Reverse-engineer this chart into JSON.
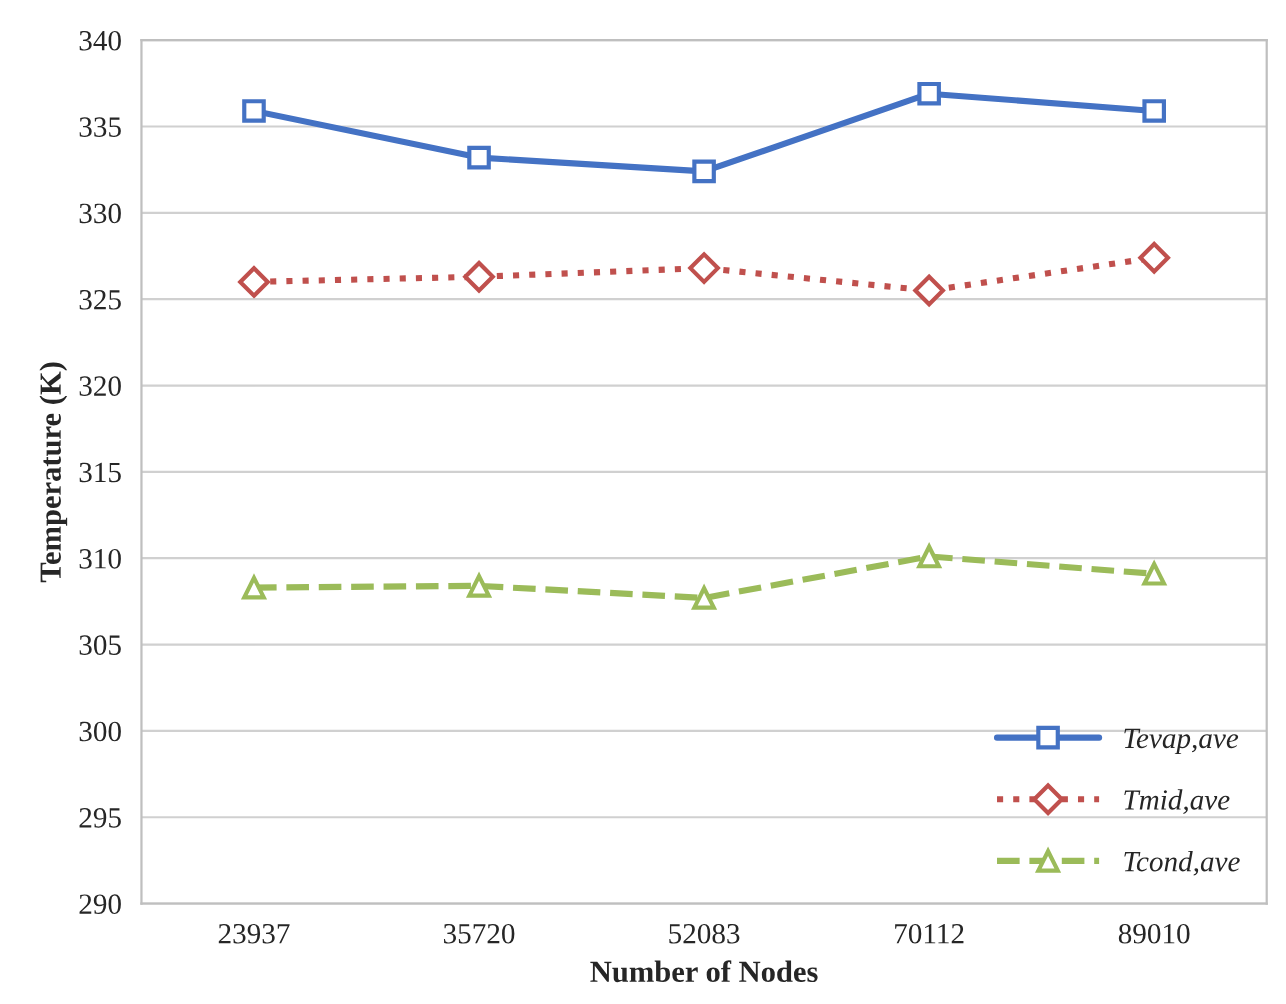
{
  "chart_data": {
    "type": "line",
    "xlabel": "Number of Nodes",
    "ylabel": "Temperature (K)",
    "categories": [
      "23937",
      "35720",
      "52083",
      "70112",
      "89010"
    ],
    "series": [
      {
        "name": "Tevap,ave",
        "color": "#4472c4",
        "marker": "square",
        "line_style": "solid",
        "values": [
          335.9,
          333.2,
          332.4,
          336.9,
          335.9
        ]
      },
      {
        "name": "Tmid,ave",
        "color": "#c0504d",
        "marker": "diamond",
        "line_style": "dotted",
        "values": [
          326.0,
          326.3,
          326.8,
          325.5,
          327.4
        ]
      },
      {
        "name": "Tcond,ave",
        "color": "#9bbb59",
        "marker": "triangle",
        "line_style": "dashed",
        "values": [
          308.3,
          308.4,
          307.7,
          310.1,
          309.1
        ]
      }
    ],
    "ylim": [
      290,
      340
    ],
    "yticks": [
      290,
      295,
      300,
      305,
      310,
      315,
      320,
      325,
      330,
      335,
      340
    ],
    "grid": "y",
    "legend": "bottom right"
  }
}
